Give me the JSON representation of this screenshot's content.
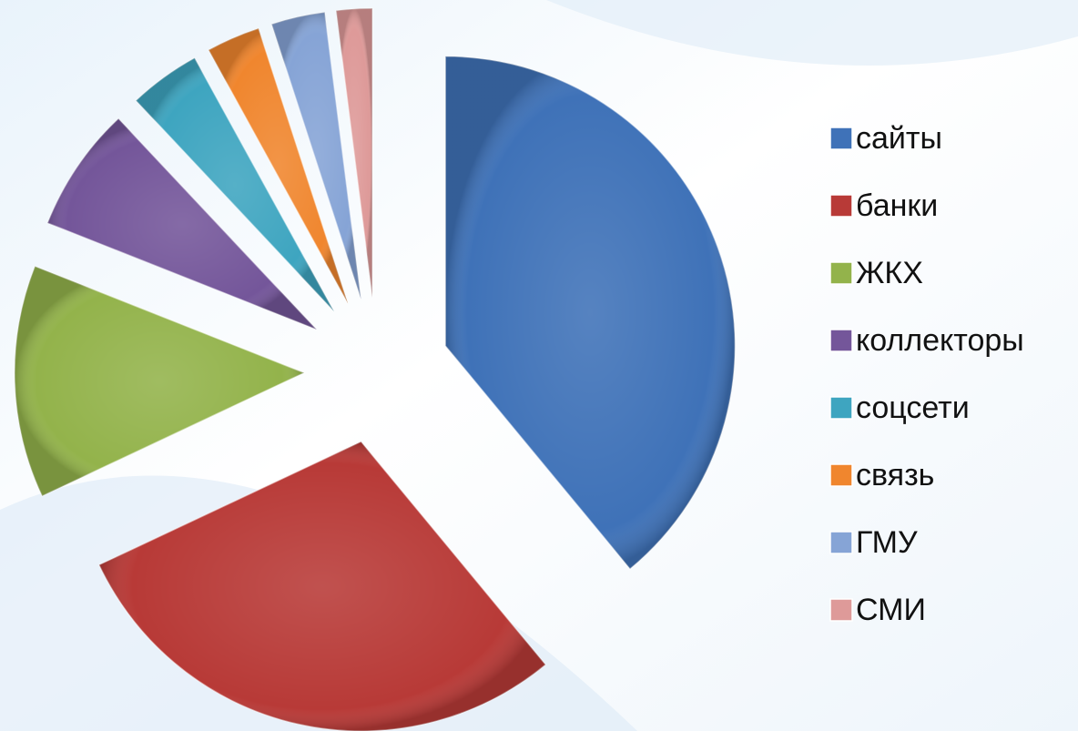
{
  "chart_data": {
    "type": "pie",
    "categories": [
      "сайты",
      "банки",
      "ЖКХ",
      "коллекторы",
      "соцсети",
      "связь",
      "ГМУ",
      "СМИ"
    ],
    "values": [
      39,
      29,
      13,
      7,
      4,
      3,
      3,
      2
    ],
    "colors": [
      "#3f72b8",
      "#b83a37",
      "#93b34b",
      "#74569a",
      "#3ea5c0",
      "#f0862e",
      "#86a4d6",
      "#de9a99"
    ],
    "exploded": true,
    "legend": "right"
  }
}
